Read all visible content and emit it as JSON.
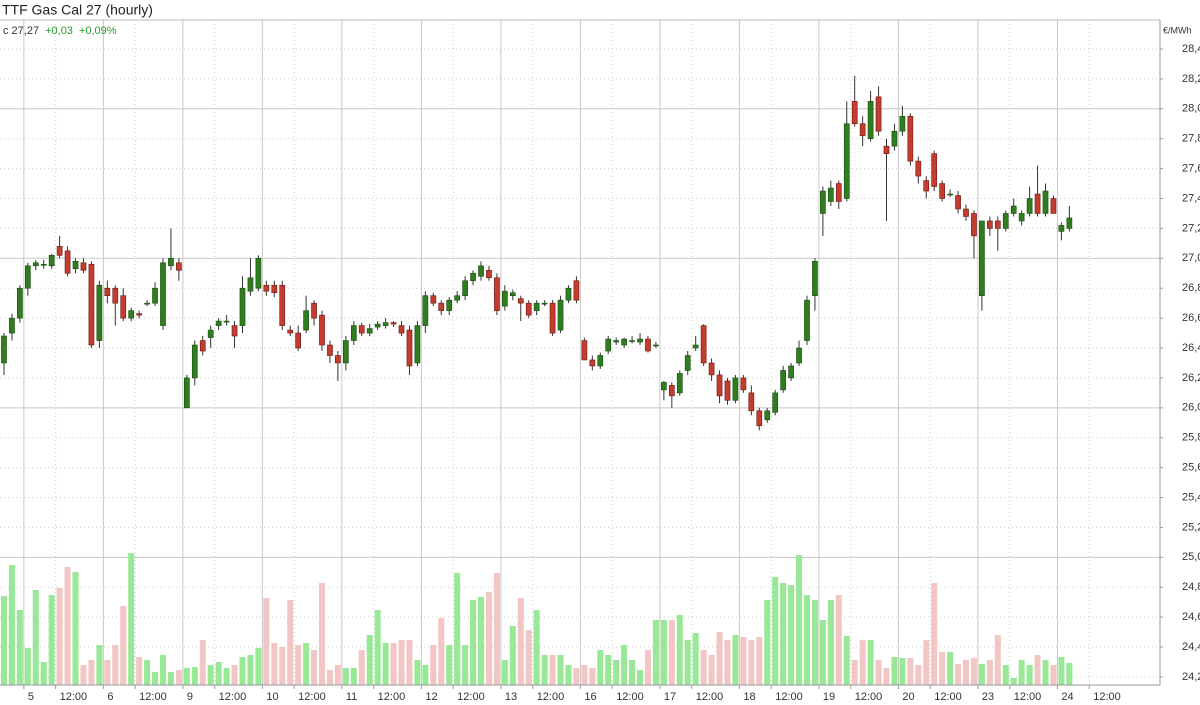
{
  "chart_data": {
    "type": "candlestick",
    "title": "TTF Gas Cal 27 (hourly)",
    "last_label": "c 27,27",
    "change": "+0,03",
    "change_pct": "+0,09%",
    "unit": "€/MWh",
    "up_color": "#2f7d1f",
    "down_color": "#c43b2f",
    "volume_up_color": "#98e898",
    "volume_down_color": "#f2c6c4",
    "grid": true,
    "ylim": [
      24.146,
      28.594
    ],
    "yticks": [
      {
        "value": 24.2,
        "label": "24,20"
      },
      {
        "value": 24.4,
        "label": "24,40"
      },
      {
        "value": 24.6,
        "label": "24,60"
      },
      {
        "value": 24.8,
        "label": "24,80"
      },
      {
        "value": 25,
        "label": "25,00"
      },
      {
        "value": 25.2,
        "label": "25,20"
      },
      {
        "value": 25.4,
        "label": "25,40"
      },
      {
        "value": 25.6,
        "label": "25,60"
      },
      {
        "value": 25.8,
        "label": "25,80"
      },
      {
        "value": 26,
        "label": "26,00"
      },
      {
        "value": 26.2,
        "label": "26,20"
      },
      {
        "value": 26.4,
        "label": "26,40"
      },
      {
        "value": 26.6,
        "label": "26,60"
      },
      {
        "value": 26.8,
        "label": "26,80"
      },
      {
        "value": 27,
        "label": "27,00"
      },
      {
        "value": 27.2,
        "label": "27,20"
      },
      {
        "value": 27.4,
        "label": "27,40"
      },
      {
        "value": 27.6,
        "label": "27,60"
      },
      {
        "value": 27.8,
        "label": "27,80"
      },
      {
        "value": 28,
        "label": "28,00"
      },
      {
        "value": 28.2,
        "label": "28,20"
      },
      {
        "value": 28.4,
        "label": "28,40"
      }
    ],
    "xlim": [
      -0.5,
      145.4
    ],
    "xticks": [
      {
        "value": 2.5,
        "label": "5"
      },
      {
        "value": 12.5,
        "label": "6"
      },
      {
        "value": 22.5,
        "label": "9"
      },
      {
        "value": 32.5,
        "label": "10"
      },
      {
        "value": 42.5,
        "label": "11"
      },
      {
        "value": 52.5,
        "label": "12"
      },
      {
        "value": 62.5,
        "label": "13"
      },
      {
        "value": 72.5,
        "label": "16"
      },
      {
        "value": 82.5,
        "label": "17"
      },
      {
        "value": 92.5,
        "label": "18"
      },
      {
        "value": 102.5,
        "label": "19"
      },
      {
        "value": 112.5,
        "label": "20"
      },
      {
        "value": 122.5,
        "label": "23"
      },
      {
        "value": 132.5,
        "label": "24"
      }
    ],
    "xticks_minor": [
      {
        "value": 6.5,
        "label": "12:00"
      },
      {
        "value": 16.5,
        "label": "12:00"
      },
      {
        "value": 26.5,
        "label": "12:00"
      },
      {
        "value": 36.5,
        "label": "12:00"
      },
      {
        "value": 46.5,
        "label": "12:00"
      },
      {
        "value": 56.5,
        "label": "12:00"
      },
      {
        "value": 66.5,
        "label": "12:00"
      },
      {
        "value": 76.5,
        "label": "12:00"
      },
      {
        "value": 86.5,
        "label": "12:00"
      },
      {
        "value": 96.5,
        "label": "12:00"
      },
      {
        "value": 106.5,
        "label": "12:00"
      },
      {
        "value": 116.5,
        "label": "12:00"
      },
      {
        "value": 126.5,
        "label": "12:00"
      },
      {
        "value": 136.5,
        "label": "12:00"
      }
    ],
    "open": [
      26.3,
      26.5,
      26.6,
      26.8,
      26.95,
      26.96,
      26.95,
      27.08,
      27.05,
      26.93,
      26.97,
      26.96,
      26.45,
      26.8,
      26.8,
      26.75,
      26.6,
      26.63,
      26.7,
      26.7,
      26.55,
      26.95,
      26.97,
      26.0,
      26.2,
      26.45,
      26.47,
      26.55,
      26.58,
      26.55,
      26.55,
      26.78,
      26.8,
      26.82,
      26.82,
      26.82,
      26.52,
      26.5,
      26.52,
      26.7,
      26.62,
      26.42,
      26.35,
      26.3,
      26.45,
      26.55,
      26.5,
      26.54,
      26.55,
      26.57,
      26.55,
      26.52,
      26.3,
      26.55,
      26.75,
      26.7,
      26.65,
      26.72,
      26.75,
      26.85,
      26.88,
      26.92,
      26.87,
      26.68,
      26.75,
      26.73,
      26.7,
      26.65,
      26.7,
      26.7,
      26.52,
      26.72,
      26.85,
      26.45,
      26.32,
      26.28,
      26.38,
      26.44,
      26.42,
      26.45,
      26.44,
      26.46,
      26.42,
      26.12,
      26.15,
      26.1,
      26.25,
      26.4,
      26.55,
      26.3,
      26.22,
      26.18,
      26.05,
      26.2,
      26.1,
      25.98,
      25.92,
      25.97,
      26.12,
      26.2,
      26.3,
      26.45,
      26.75,
      27.3,
      27.38,
      27.5,
      27.4,
      28.05,
      27.9,
      27.8,
      28.08,
      27.75,
      27.75,
      27.85,
      27.95,
      27.65,
      27.52,
      27.7,
      27.5,
      27.43,
      27.42,
      27.33,
      27.3,
      26.75,
      27.25,
      27.25,
      27.2,
      27.3,
      27.25,
      27.3,
      27.43,
      27.3,
      27.4,
      27.18,
      27.2
    ],
    "high": [
      26.5,
      26.63,
      26.82,
      26.97,
      26.99,
      26.99,
      27.03,
      27.15,
      27.08,
      27.0,
      27.0,
      26.98,
      26.85,
      26.85,
      26.82,
      26.8,
      26.67,
      26.65,
      26.72,
      26.84,
      27.0,
      27.2,
      27.0,
      26.22,
      26.45,
      26.48,
      26.55,
      26.6,
      26.62,
      26.58,
      26.88,
      27.0,
      27.02,
      26.85,
      26.85,
      26.85,
      26.55,
      26.55,
      26.75,
      26.72,
      26.65,
      26.45,
      26.38,
      26.48,
      26.58,
      26.57,
      26.56,
      26.58,
      26.6,
      26.58,
      26.58,
      26.55,
      26.58,
      26.78,
      26.77,
      26.72,
      26.74,
      26.78,
      26.88,
      26.92,
      26.98,
      26.95,
      26.9,
      26.82,
      26.79,
      26.75,
      26.72,
      26.72,
      26.72,
      26.72,
      26.75,
      26.82,
      26.88,
      26.47,
      26.35,
      26.37,
      26.48,
      26.47,
      26.47,
      26.48,
      26.5,
      26.48,
      26.44,
      26.18,
      26.17,
      26.25,
      26.38,
      26.48,
      26.56,
      26.33,
      26.25,
      26.2,
      26.22,
      26.22,
      26.15,
      26.0,
      26.0,
      26.12,
      26.28,
      26.3,
      26.45,
      26.75,
      27.0,
      27.48,
      27.52,
      27.52,
      28.05,
      28.22,
      27.95,
      28.12,
      28.15,
      27.8,
      27.9,
      28.02,
      27.97,
      27.68,
      27.55,
      27.72,
      27.52,
      27.46,
      27.45,
      27.36,
      27.32,
      27.25,
      27.28,
      27.28,
      27.32,
      27.4,
      27.32,
      27.48,
      27.62,
      27.5,
      27.42,
      27.24,
      27.35
    ],
    "low": [
      26.22,
      26.45,
      26.57,
      26.75,
      26.92,
      26.93,
      26.93,
      27.0,
      26.88,
      26.9,
      26.9,
      26.4,
      26.4,
      26.7,
      26.55,
      26.58,
      26.58,
      26.6,
      26.68,
      26.68,
      26.52,
      26.92,
      26.85,
      26.0,
      26.15,
      26.35,
      26.4,
      26.52,
      26.55,
      26.4,
      26.5,
      26.75,
      26.78,
      26.75,
      26.74,
      26.52,
      26.48,
      26.38,
      26.5,
      26.55,
      26.38,
      26.3,
      26.18,
      26.25,
      26.42,
      26.48,
      26.48,
      26.52,
      26.53,
      26.54,
      26.48,
      26.22,
      26.28,
      26.5,
      26.68,
      26.62,
      26.62,
      26.7,
      26.72,
      26.82,
      26.85,
      26.85,
      26.62,
      26.65,
      26.72,
      26.58,
      26.6,
      26.62,
      26.68,
      26.48,
      26.5,
      26.7,
      26.7,
      26.32,
      26.25,
      26.26,
      26.36,
      26.42,
      26.4,
      26.43,
      26.42,
      26.37,
      26.4,
      26.05,
      26.0,
      26.08,
      26.22,
      26.38,
      26.28,
      26.18,
      26.03,
      26.02,
      26.03,
      26.1,
      25.95,
      25.85,
      25.9,
      25.95,
      26.1,
      26.18,
      26.28,
      26.42,
      26.65,
      27.15,
      27.35,
      27.33,
      27.38,
      27.88,
      27.75,
      27.78,
      27.82,
      27.25,
      27.72,
      27.82,
      27.62,
      27.5,
      27.4,
      27.45,
      27.38,
      27.41,
      27.3,
      27.25,
      27.0,
      26.65,
      27.15,
      27.05,
      27.18,
      27.28,
      27.22,
      27.28,
      27.28,
      27.28,
      27.3,
      27.12,
      27.18
    ],
    "close": [
      26.48,
      26.6,
      26.8,
      26.95,
      26.97,
      26.96,
      27.02,
      27.02,
      26.9,
      26.98,
      26.92,
      26.42,
      26.82,
      26.75,
      26.7,
      26.6,
      26.65,
      26.62,
      26.7,
      26.8,
      26.97,
      27.0,
      26.92,
      26.2,
      26.42,
      26.38,
      26.52,
      26.58,
      26.58,
      26.48,
      26.8,
      26.87,
      27.0,
      26.78,
      26.77,
      26.55,
      26.5,
      26.4,
      26.65,
      26.6,
      26.42,
      26.35,
      26.3,
      26.45,
      26.55,
      26.5,
      26.53,
      26.56,
      26.57,
      26.56,
      26.5,
      26.28,
      26.55,
      26.75,
      26.7,
      26.65,
      26.72,
      26.75,
      26.85,
      26.9,
      26.95,
      26.87,
      26.65,
      26.78,
      26.77,
      26.7,
      26.62,
      26.7,
      26.7,
      26.5,
      26.72,
      26.8,
      26.72,
      26.32,
      26.28,
      26.35,
      26.46,
      26.45,
      26.46,
      26.45,
      26.46,
      26.38,
      26.42,
      26.17,
      26.08,
      26.23,
      26.35,
      26.42,
      26.3,
      26.22,
      26.08,
      26.05,
      26.2,
      26.12,
      25.98,
      25.88,
      25.98,
      26.1,
      26.25,
      26.28,
      26.4,
      26.72,
      26.98,
      27.45,
      27.47,
      27.38,
      27.9,
      27.9,
      27.82,
      28.05,
      27.85,
      27.7,
      27.85,
      27.95,
      27.65,
      27.55,
      27.45,
      27.48,
      27.4,
      27.43,
      27.33,
      27.28,
      27.15,
      27.25,
      27.2,
      27.2,
      27.3,
      27.35,
      27.3,
      27.4,
      27.3,
      27.45,
      27.3,
      27.22,
      27.27
    ],
    "volume": [
      89,
      120,
      75,
      37,
      95,
      23,
      90,
      97,
      118,
      113,
      20,
      25,
      40,
      25,
      40,
      79,
      132,
      28,
      25,
      13,
      30,
      13,
      15,
      17,
      18,
      45,
      20,
      23,
      17,
      20,
      28,
      30,
      37,
      87,
      42,
      38,
      85,
      40,
      42,
      35,
      102,
      15,
      20,
      17,
      17,
      35,
      50,
      75,
      42,
      42,
      45,
      45,
      25,
      20,
      40,
      67,
      40,
      112,
      40,
      85,
      88,
      93,
      112,
      25,
      59,
      87,
      55,
      75,
      30,
      30,
      30,
      20,
      17,
      20,
      17,
      35,
      30,
      25,
      40,
      25,
      15,
      35,
      65,
      65,
      65,
      70,
      45,
      52,
      35,
      30,
      53,
      45,
      50,
      48,
      45,
      48,
      85,
      108,
      102,
      100,
      130,
      90,
      85,
      65,
      85,
      90,
      49,
      25,
      45,
      45,
      25,
      17,
      28,
      27,
      27,
      20,
      45,
      102,
      33,
      33,
      21,
      25,
      27,
      21,
      25,
      50,
      20,
      7,
      25,
      20,
      30,
      25,
      20,
      28,
      22
    ]
  }
}
